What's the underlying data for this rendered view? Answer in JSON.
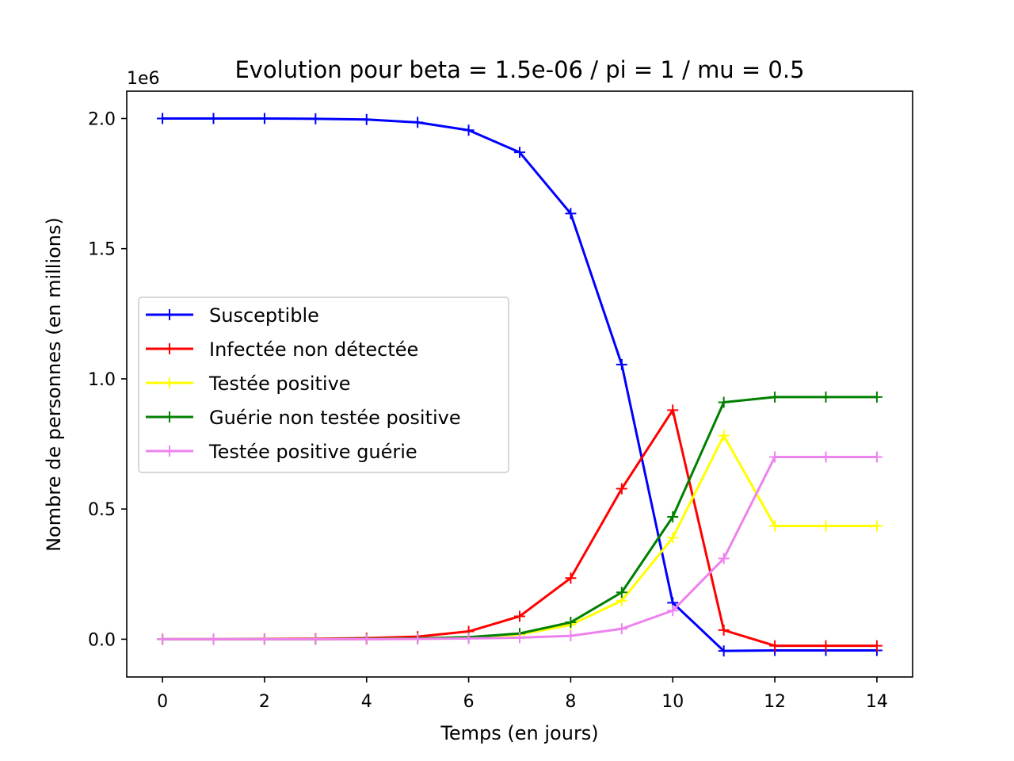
{
  "chart_data": {
    "type": "line",
    "title": "Evolution pour beta = 1.5e-06 / pi = 1 / mu = 0.5",
    "xlabel": "Temps (en jours)",
    "ylabel": "Nombre de personnes (en millions)",
    "y_offset_label": "1e6",
    "xlim": [
      -0.7,
      14.7
    ],
    "ylim": [
      -0.145,
      2.105
    ],
    "x_ticks": [
      0,
      2,
      4,
      6,
      8,
      10,
      12,
      14
    ],
    "x_tick_labels": [
      "0",
      "2",
      "4",
      "6",
      "8",
      "10",
      "12",
      "14"
    ],
    "y_ticks": [
      0.0,
      0.5,
      1.0,
      1.5,
      2.0
    ],
    "y_tick_labels": [
      "0.0",
      "0.5",
      "1.0",
      "1.5",
      "2.0"
    ],
    "grid": false,
    "legend_position": "center-left",
    "marker": "+",
    "x": [
      0,
      1,
      2,
      3,
      4,
      5,
      6,
      7,
      8,
      9,
      10,
      11,
      12,
      13,
      14
    ],
    "series": [
      {
        "name": "Susceptible",
        "color": "#0000ff",
        "values": [
          2.0,
          2.0,
          2.0,
          1.999,
          1.996,
          1.985,
          1.955,
          1.87,
          1.635,
          1.055,
          0.14,
          -0.045,
          -0.043,
          -0.043,
          -0.043
        ]
      },
      {
        "name": "Infectée non détectée",
        "color": "#ff0000",
        "values": [
          0.0,
          0.0,
          0.001,
          0.002,
          0.004,
          0.01,
          0.03,
          0.088,
          0.235,
          0.578,
          0.88,
          0.035,
          -0.025,
          -0.025,
          -0.025
        ]
      },
      {
        "name": "Testée positive",
        "color": "#ffff00",
        "values": [
          0.0,
          0.0,
          0.0,
          0.0,
          0.001,
          0.003,
          0.006,
          0.018,
          0.055,
          0.148,
          0.39,
          0.782,
          0.435,
          0.435,
          0.435
        ]
      },
      {
        "name": "Guérie non testée positive",
        "color": "#008000",
        "values": [
          0.0,
          0.0,
          0.0,
          0.0,
          0.001,
          0.003,
          0.008,
          0.022,
          0.065,
          0.18,
          0.47,
          0.91,
          0.93,
          0.93,
          0.93
        ]
      },
      {
        "name": "Testée positive guérie",
        "color": "#ee82ee",
        "values": [
          0.0,
          0.0,
          0.0,
          0.0,
          0.0,
          0.001,
          0.003,
          0.006,
          0.013,
          0.04,
          0.11,
          0.31,
          0.7,
          0.7,
          0.7
        ]
      }
    ]
  }
}
